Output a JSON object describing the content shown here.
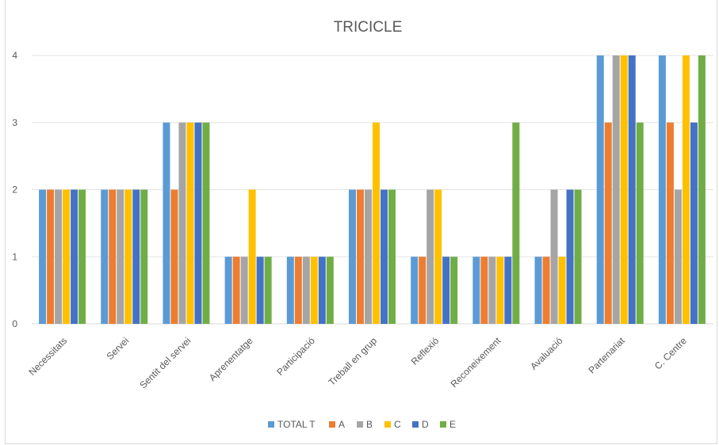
{
  "chart_data": {
    "type": "bar",
    "title": "TRICICLE",
    "xlabel": "",
    "ylabel": "",
    "ylim": [
      0,
      4
    ],
    "yticks": [
      "0",
      "1",
      "2",
      "3",
      "4"
    ],
    "grid": true,
    "legend_position": "bottom",
    "categories": [
      "Necessitats",
      "Servei",
      "Sentit del servei",
      "Aprenentatge",
      "Participació",
      "Treball en grup",
      "Reflexió",
      "Reconeixement",
      "Avaluació",
      "Partenariat",
      "C. Centre"
    ],
    "series": [
      {
        "name": "TOTAL T",
        "color": "#5b9bd5",
        "values": [
          2,
          2,
          3,
          1,
          1,
          2,
          1,
          1,
          1,
          4,
          4
        ]
      },
      {
        "name": "A",
        "color": "#ed7d31",
        "values": [
          2,
          2,
          2,
          1,
          1,
          2,
          1,
          1,
          1,
          3,
          3
        ]
      },
      {
        "name": "B",
        "color": "#a5a5a5",
        "values": [
          2,
          2,
          3,
          1,
          1,
          2,
          2,
          1,
          2,
          4,
          2
        ]
      },
      {
        "name": "C",
        "color": "#ffc000",
        "values": [
          2,
          2,
          3,
          2,
          1,
          3,
          2,
          1,
          1,
          4,
          4
        ]
      },
      {
        "name": "D",
        "color": "#4472c4",
        "values": [
          2,
          2,
          3,
          1,
          1,
          2,
          1,
          1,
          2,
          4,
          3
        ]
      },
      {
        "name": "E",
        "color": "#70ad47",
        "values": [
          2,
          2,
          3,
          1,
          1,
          2,
          1,
          3,
          2,
          3,
          4
        ]
      }
    ]
  }
}
